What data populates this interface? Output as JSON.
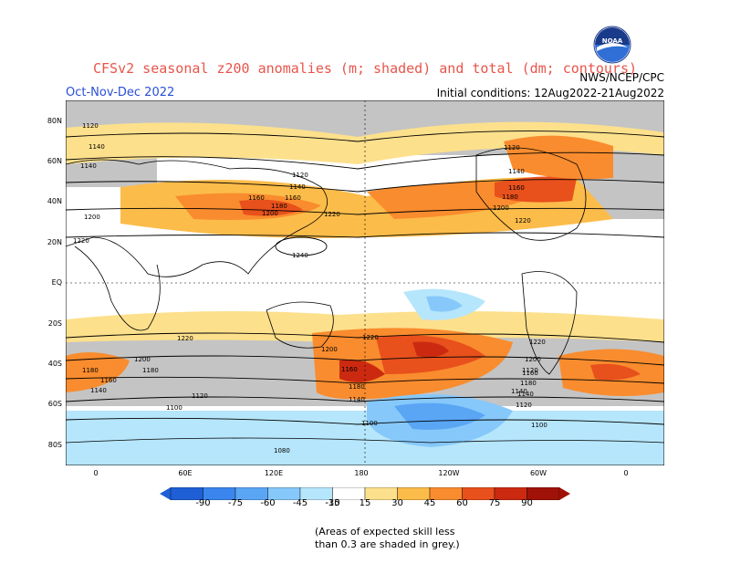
{
  "header": {
    "title": "CFSv2 seasonal z200 anomalies (m; shaded) and total (dm; contours)",
    "period": "Oct-Nov-Dec 2022",
    "initial_conditions": "Initial conditions: 12Aug2022-21Aug2022",
    "org": "NWS/NCEP/CPC",
    "logo_text": "NOAA"
  },
  "axes": {
    "lat_labels": [
      "80N",
      "60N",
      "40N",
      "20N",
      "EQ",
      "20S",
      "40S",
      "60S",
      "80S"
    ],
    "lon_labels": [
      "0",
      "60E",
      "120E",
      "180",
      "120W",
      "60W",
      "0"
    ]
  },
  "contour_labels": [
    "1120",
    "1140",
    "1140",
    "1160",
    "1200",
    "1220",
    "1120",
    "1140",
    "1160",
    "1180",
    "1200",
    "1220",
    "1240",
    "1120",
    "1140",
    "1160",
    "1180",
    "1200",
    "1220",
    "1220",
    "1200",
    "1180",
    "1160",
    "1140",
    "1180",
    "1160",
    "1140",
    "1120",
    "1200",
    "1220",
    "1100",
    "1120",
    "1160",
    "1180",
    "1140",
    "1100",
    "1080",
    "1100",
    "1220",
    "1200",
    "1180",
    "1140",
    "1120"
  ],
  "colorbar": {
    "labels": [
      "-90",
      "-75",
      "-60",
      "-45",
      "-30",
      "-15",
      "15",
      "30",
      "45",
      "60",
      "75",
      "90"
    ],
    "colors": [
      "#1f5fd6",
      "#3a86ee",
      "#5aa6f5",
      "#86c8fa",
      "#b6e6fc",
      "#ffffff",
      "#fde08c",
      "#fcbc4a",
      "#f98c2e",
      "#e8501c",
      "#cc2a10",
      "#a01208"
    ]
  },
  "footnote": {
    "line1": "(Areas of expected skill less",
    "line2": "than 0.3 are shaded in grey.)"
  }
}
